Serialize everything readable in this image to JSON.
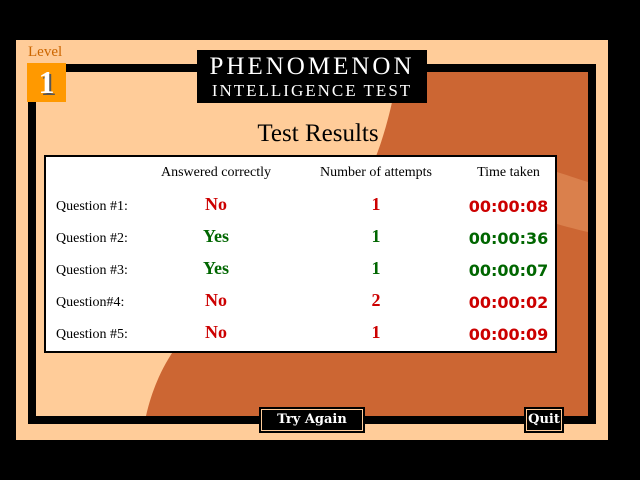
{
  "level": {
    "label": "Level",
    "number": "1"
  },
  "title": {
    "line1": "PHENOMENON",
    "line2": "INTELLIGENCE TEST"
  },
  "heading": "Test Results",
  "table": {
    "headers": [
      "Answered correctly",
      "Number of attempts",
      "Time taken"
    ],
    "rows": [
      {
        "question": "Question #1:",
        "answered": "No",
        "attempts": "1",
        "time": "00:00:08",
        "color": "#cc0000"
      },
      {
        "question": "Question #2:",
        "answered": "Yes",
        "attempts": "1",
        "time": "00:00:36",
        "color": "#006600"
      },
      {
        "question": "Question #3:",
        "answered": "Yes",
        "attempts": "1",
        "time": "00:00:07",
        "color": "#006600"
      },
      {
        "question": "Question#4:",
        "answered": "No",
        "attempts": "2",
        "time": "00:00:02",
        "color": "#cc0000"
      },
      {
        "question": "Question #5:",
        "answered": "No",
        "attempts": "1",
        "time": "00:00:09",
        "color": "#cc0000"
      }
    ]
  },
  "buttons": {
    "try_again": "Try Again",
    "quit": "Quit"
  },
  "colors": {
    "panel": "#ffcc99",
    "photo": "#cc6633",
    "level_box": "#ff9900",
    "correct": "#006600",
    "incorrect": "#cc0000"
  }
}
